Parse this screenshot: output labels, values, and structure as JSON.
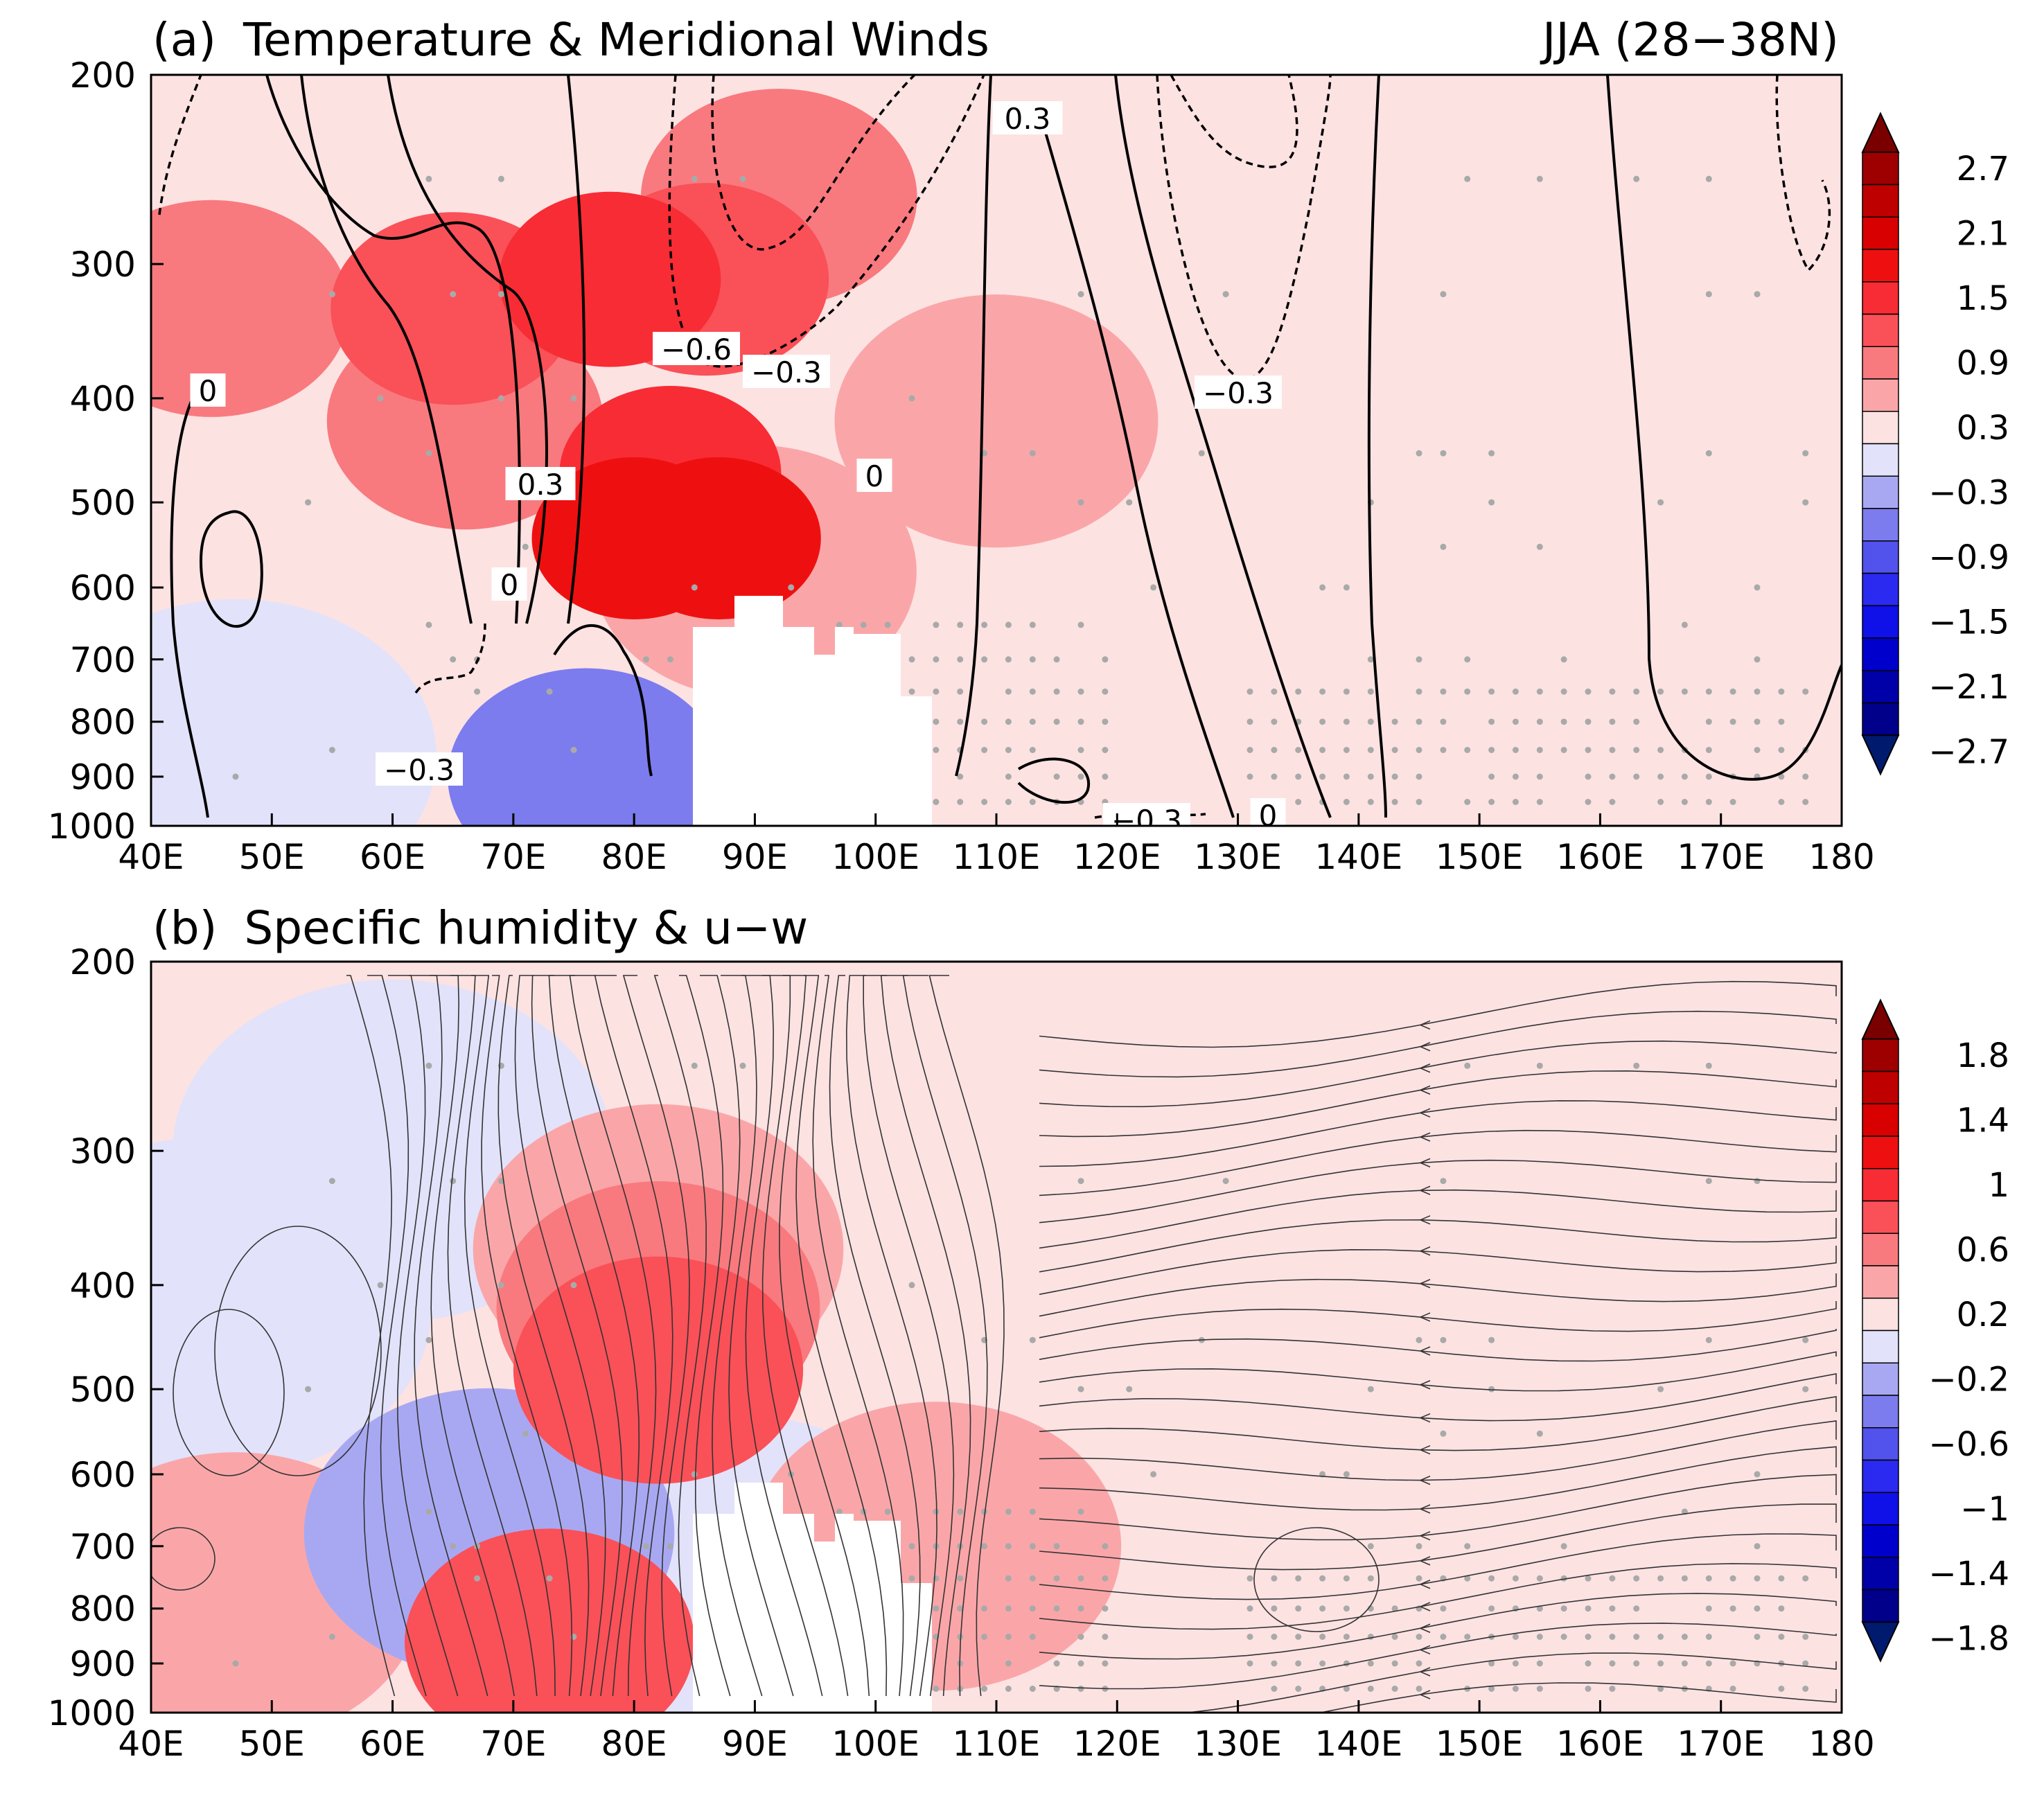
{
  "chart_data": [
    {
      "type": "heatmap",
      "panel_label": "(a)",
      "title": "Temperature & Meridional Winds",
      "season_label": "JJA (28−38N)",
      "x_ticks": [
        "40E",
        "50E",
        "60E",
        "70E",
        "80E",
        "90E",
        "100E",
        "110E",
        "120E",
        "130E",
        "140E",
        "150E",
        "160E",
        "170E",
        "180"
      ],
      "x_tick_values": [
        40,
        50,
        60,
        70,
        80,
        90,
        100,
        110,
        120,
        130,
        140,
        150,
        160,
        170,
        180
      ],
      "y_ticks": [
        "200",
        "300",
        "400",
        "500",
        "600",
        "700",
        "800",
        "900",
        "1000"
      ],
      "y_tick_values": [
        200,
        300,
        400,
        500,
        600,
        700,
        800,
        900,
        1000
      ],
      "xlim": [
        40,
        180
      ],
      "ylim": [
        1000,
        200
      ],
      "y_scale": "log-pressure",
      "shading_variable": "temperature anomaly",
      "shading_field": [
        {
          "level": 1.8,
          "lon": 87,
          "p": 540
        },
        {
          "level": 1.8,
          "lon": 80,
          "p": 540
        },
        {
          "level": 1.5,
          "lon": 78,
          "p": 310
        },
        {
          "level": 1.5,
          "lon": 83,
          "p": 470
        },
        {
          "level": 1.2,
          "lon": 65,
          "p": 330
        },
        {
          "level": 1.2,
          "lon": 86,
          "p": 310
        },
        {
          "level": 0.9,
          "lon": 45,
          "p": 330
        },
        {
          "level": 0.9,
          "lon": 66,
          "p": 420
        },
        {
          "level": 0.9,
          "lon": 92,
          "p": 260
        },
        {
          "level": 0.6,
          "lon": 90,
          "p": 580
        },
        {
          "level": 0.6,
          "lon": 110,
          "p": 420
        },
        {
          "level": 0.3,
          "lon": 52,
          "p": 620
        },
        {
          "level": 0.3,
          "lon": 118,
          "p": 560
        },
        {
          "level": 0.3,
          "lon": 160,
          "p": 500
        },
        {
          "level": -0.3,
          "lon": 47,
          "p": 860
        },
        {
          "level": -0.9,
          "lon": 76,
          "p": 900
        }
      ],
      "contour_variable": "meridional wind",
      "contour_labels": [
        "0",
        "0.3",
        "0",
        "−0.6",
        "−0.3",
        "0",
        "−0.3",
        "0.3",
        "−0.3",
        "−0.3",
        "0"
      ],
      "colorbar": {
        "labels": [
          "2.7",
          "2.1",
          "1.5",
          "0.9",
          "0.3",
          "−0.3",
          "−0.9",
          "−1.5",
          "−2.1",
          "−2.7"
        ],
        "boundaries": [
          3.0,
          2.7,
          2.4,
          2.1,
          1.8,
          1.5,
          1.2,
          0.9,
          0.6,
          0.3,
          -0.3,
          -0.6,
          -0.9,
          -1.2,
          -1.5,
          -1.8,
          -2.1,
          -2.4,
          -2.7,
          -3.0
        ],
        "colors": [
          "#7a0000",
          "#9e0000",
          "#be0000",
          "#d80000",
          "#ee1010",
          "#f82c34",
          "#fa5058",
          "#f87a7e",
          "#faa6a8",
          "#fde2e2",
          "#e2e2fa",
          "#a8a8f2",
          "#7c7cee",
          "#5252ec",
          "#2a2af0",
          "#1010e8",
          "#0000cc",
          "#0000a8",
          "#00008a",
          "#001a6e"
        ]
      },
      "grid": false
    },
    {
      "type": "heatmap",
      "panel_label": "(b)",
      "title": "Specific humidity & u−w",
      "x_ticks": [
        "40E",
        "50E",
        "60E",
        "70E",
        "80E",
        "90E",
        "100E",
        "110E",
        "120E",
        "130E",
        "140E",
        "150E",
        "160E",
        "170E",
        "180"
      ],
      "x_tick_values": [
        40,
        50,
        60,
        70,
        80,
        90,
        100,
        110,
        120,
        130,
        140,
        150,
        160,
        170,
        180
      ],
      "y_ticks": [
        "200",
        "300",
        "400",
        "500",
        "600",
        "700",
        "800",
        "900",
        "1000"
      ],
      "y_tick_values": [
        200,
        300,
        400,
        500,
        600,
        700,
        800,
        900,
        1000
      ],
      "xlim": [
        40,
        180
      ],
      "ylim": [
        1000,
        200
      ],
      "y_scale": "log-pressure",
      "shading_variable": "specific humidity anomaly",
      "shading_field": [
        {
          "level": 0.8,
          "lon": 82,
          "p": 480
        },
        {
          "level": 0.8,
          "lon": 73,
          "p": 860
        },
        {
          "level": 0.6,
          "lon": 82,
          "p": 420
        },
        {
          "level": 0.4,
          "lon": 82,
          "p": 370
        },
        {
          "level": 0.4,
          "lon": 105,
          "p": 700
        },
        {
          "level": 0.4,
          "lon": 47,
          "p": 780
        },
        {
          "level": 0.2,
          "lon": 110,
          "p": 900
        },
        {
          "level": 0.2,
          "lon": 125,
          "p": 960
        },
        {
          "level": -0.2,
          "lon": 60,
          "p": 300
        },
        {
          "level": -0.2,
          "lon": 45,
          "p": 420
        },
        {
          "level": -0.4,
          "lon": 68,
          "p": 680
        },
        {
          "level": -0.2,
          "lon": 88,
          "p": 760
        }
      ],
      "vector_variable": "u−w streamlines",
      "colorbar": {
        "labels": [
          "1.8",
          "1.4",
          "1",
          "0.6",
          "0.2",
          "−0.2",
          "−0.6",
          "−1",
          "−1.4",
          "−1.8"
        ],
        "boundaries": [
          2.0,
          1.8,
          1.6,
          1.4,
          1.2,
          1.0,
          0.8,
          0.6,
          0.4,
          0.2,
          -0.2,
          -0.4,
          -0.6,
          -0.8,
          -1.0,
          -1.2,
          -1.4,
          -1.6,
          -1.8,
          -2.0
        ],
        "colors": [
          "#7a0000",
          "#9e0000",
          "#be0000",
          "#d80000",
          "#ee1010",
          "#f82c34",
          "#fa5058",
          "#f87a7e",
          "#faa6a8",
          "#fde2e2",
          "#e2e2fa",
          "#a8a8f2",
          "#7c7cee",
          "#5252ec",
          "#2a2af0",
          "#1010e8",
          "#0000cc",
          "#0000a8",
          "#00008a",
          "#001a6e"
        ]
      },
      "grid": false
    }
  ]
}
